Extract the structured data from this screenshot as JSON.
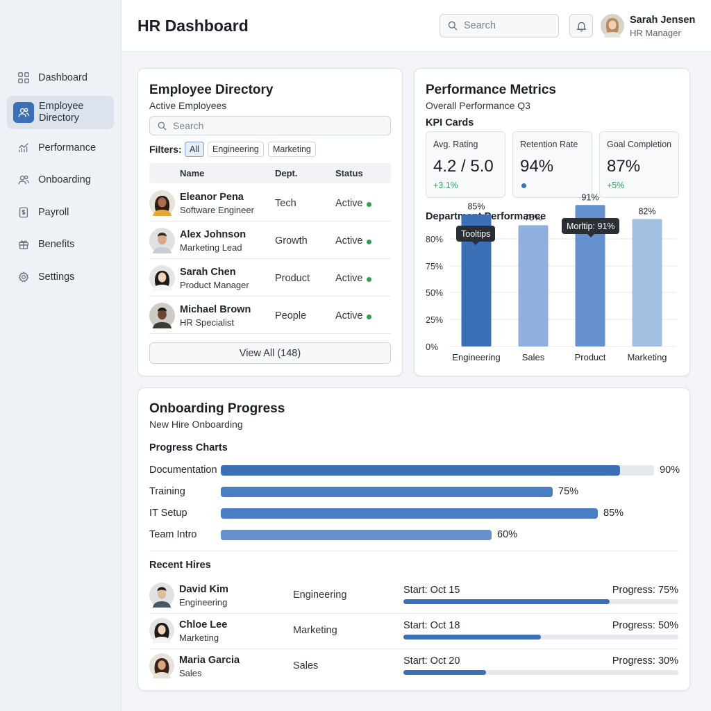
{
  "app": {
    "title": "HR Dashboard"
  },
  "sidebar": {
    "items": [
      {
        "label": "Dashboard",
        "icon": "grid-icon",
        "active": false
      },
      {
        "label": "Employee Directory",
        "icon": "users-icon",
        "active": true
      },
      {
        "label": "Performance",
        "icon": "trend-chart-icon",
        "active": false
      },
      {
        "label": "Onboarding",
        "icon": "user-add-icon",
        "active": false
      },
      {
        "label": "Payroll",
        "icon": "dollar-document-icon",
        "active": false
      },
      {
        "label": "Benefits",
        "icon": "gift-icon",
        "active": false
      },
      {
        "label": "Settings",
        "icon": "gear-icon",
        "active": false
      }
    ]
  },
  "header": {
    "search_placeholder": "Search",
    "user": {
      "name": "Sarah Jensen",
      "role": "HR Manager"
    }
  },
  "directory": {
    "title": "Employee Directory",
    "subtitle": "Active Employees",
    "search_placeholder": "Search",
    "filters_label": "Filters:",
    "filters": [
      "All",
      "Engineering",
      "Marketing"
    ],
    "active_filter": "All",
    "columns": [
      "Name",
      "Dept.",
      "Status"
    ],
    "rows": [
      {
        "name": "Eleanor Pena",
        "role": "Software Engineer",
        "dept": "Tech",
        "status": "Active"
      },
      {
        "name": "Alex Johnson",
        "role": "Marketing Lead",
        "dept": "Growth",
        "status": "Active"
      },
      {
        "name": "Sarah Chen",
        "role": "Product Manager",
        "dept": "Product",
        "status": "Active"
      },
      {
        "name": "Michael Brown",
        "role": "HR Specialist",
        "dept": "People",
        "status": "Active"
      }
    ],
    "view_all_label": "View All (148)"
  },
  "performance": {
    "title": "Performance Metrics",
    "subtitle": "Overall Performance Q3",
    "kpi_heading": "KPI Cards",
    "kpis": [
      {
        "label": "Avg. Rating",
        "value": "4.2 / 5.0",
        "delta": "+3.1%"
      },
      {
        "label": "Retention Rate",
        "value": "94%",
        "delta": ""
      },
      {
        "label": "Goal Completion",
        "value": "87%",
        "delta": "+5%"
      }
    ],
    "chart_heading": "Department Performance",
    "tooltips": [
      "Tooltips",
      "Morltip: 91%"
    ]
  },
  "chart_data": {
    "type": "bar",
    "title": "Department Performance",
    "categories": [
      "Engineering",
      "Sales",
      "Product",
      "Marketing"
    ],
    "values": [
      85,
      78,
      91,
      82
    ],
    "value_labels": [
      "85%",
      "78%",
      "91%",
      "82%"
    ],
    "y_ticks": [
      "0%",
      "25%",
      "50%",
      "75%",
      "80%"
    ],
    "bar_colors": [
      "#3b6fb6",
      "#8fb0dc",
      "#6592cf",
      "#a3bfe2"
    ],
    "grid": true,
    "xlabel": "",
    "ylabel": ""
  },
  "onboarding": {
    "title": "Onboarding Progress",
    "subtitle": "New Hire Onboarding",
    "charts_heading": "Progress Charts",
    "bars": [
      {
        "label": "Documentation",
        "value": 90,
        "display": "90%",
        "color": "#3b6fb6"
      },
      {
        "label": "Training",
        "value": 75,
        "display": "75%",
        "color": "#4a7ec2"
      },
      {
        "label": "IT Setup",
        "value": 85,
        "display": "85%",
        "color": "#4a7ec2"
      },
      {
        "label": "Team Intro",
        "value": 60,
        "display": "60%",
        "color": "#6592cf"
      }
    ],
    "recent_heading": "Recent Hires",
    "hires": [
      {
        "name": "David Kim",
        "dept_small": "Engineering",
        "dept": "Engineering",
        "start": "Start: Oct 15",
        "progress_label": "Progress: 75%",
        "progress": 75
      },
      {
        "name": "Chloe Lee",
        "dept_small": "Marketing",
        "dept": "Marketing",
        "start": "Start: Oct 18",
        "progress_label": "Progress: 50%",
        "progress": 50
      },
      {
        "name": "Maria Garcia",
        "dept_small": "Sales",
        "dept": "Sales",
        "start": "Start: Oct 20",
        "progress_label": "Progress: 30%",
        "progress": 30
      }
    ]
  },
  "colors": {
    "accent": "#3b6fb6",
    "status_active": "#2f9e59"
  }
}
